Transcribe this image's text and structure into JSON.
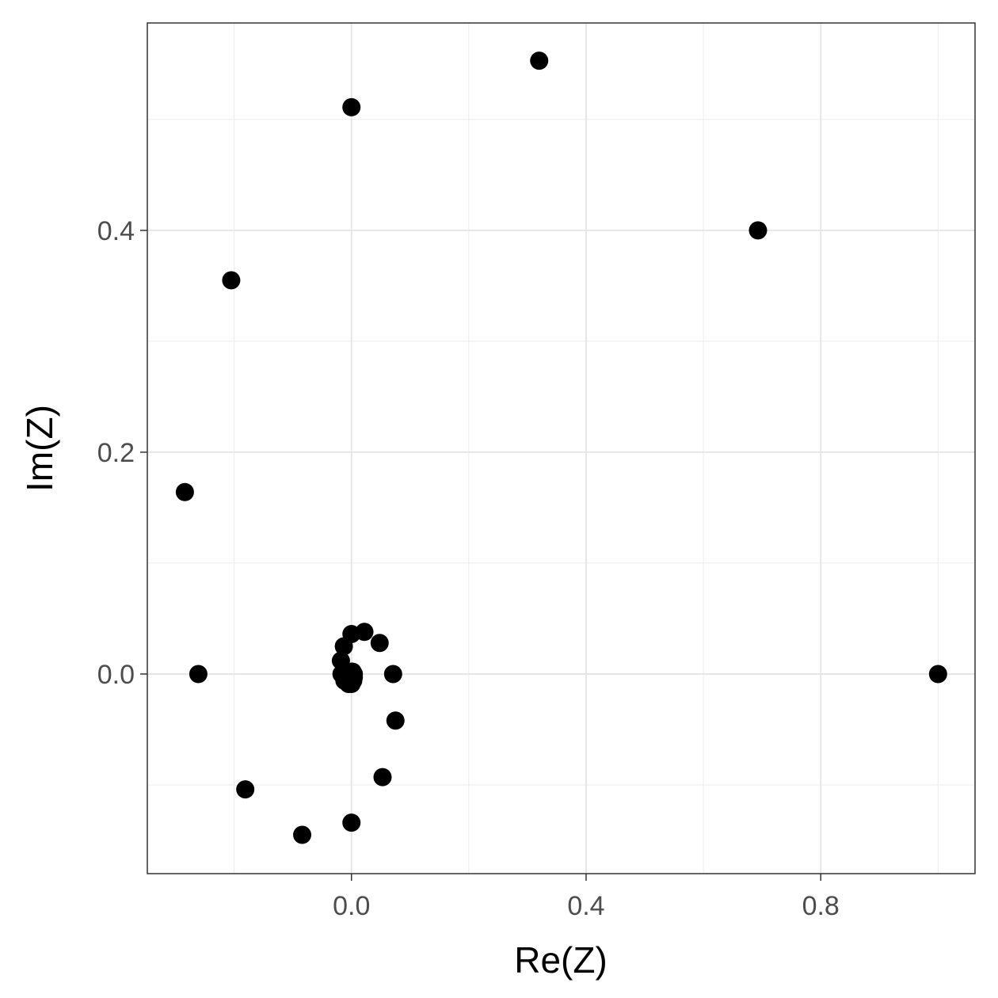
{
  "chart_data": {
    "type": "scatter",
    "title": "",
    "xlabel": "Re(Z)",
    "ylabel": "Im(Z)",
    "xlim": [
      -0.348,
      1.063
    ],
    "ylim": [
      -0.18,
      0.587
    ],
    "x_ticks": [
      0.0,
      0.4,
      0.8
    ],
    "x_tick_labels": [
      "0.0",
      "0.4",
      "0.8"
    ],
    "x_minor": [
      -0.2,
      0.2,
      0.6,
      1.0
    ],
    "y_ticks": [
      0.0,
      0.2,
      0.4
    ],
    "y_tick_labels": [
      "0.0",
      "0.2",
      "0.4"
    ],
    "y_minor": [
      -0.1,
      0.1,
      0.3,
      0.5
    ],
    "grid": true,
    "point_color": "#000000",
    "series": [
      {
        "points": [
          [
            1.0,
            0.0
          ],
          [
            0.693,
            0.4
          ],
          [
            0.32,
            0.553
          ],
          [
            0.0,
            0.511
          ],
          [
            -0.205,
            0.355
          ],
          [
            -0.284,
            0.164
          ],
          [
            -0.261,
            0.0
          ],
          [
            -0.181,
            -0.104
          ],
          [
            -0.084,
            -0.145
          ],
          [
            0.0,
            -0.134
          ],
          [
            0.053,
            -0.093
          ],
          [
            0.075,
            -0.042
          ],
          [
            0.071,
            0.0
          ],
          [
            0.048,
            0.028
          ],
          [
            0.022,
            0.038
          ],
          [
            0.0,
            0.036
          ],
          [
            -0.013,
            0.025
          ],
          [
            -0.018,
            0.012
          ],
          [
            -0.017,
            0.0
          ],
          [
            -0.012,
            -0.006
          ],
          [
            -0.005,
            -0.009
          ],
          [
            0.0,
            -0.009
          ],
          [
            0.003,
            -0.006
          ],
          [
            0.004,
            -0.003
          ],
          [
            0.004,
            0.0
          ],
          [
            0.002,
            0.002
          ],
          [
            0.001,
            0.002
          ],
          [
            0.0,
            0.002
          ]
        ]
      }
    ]
  }
}
